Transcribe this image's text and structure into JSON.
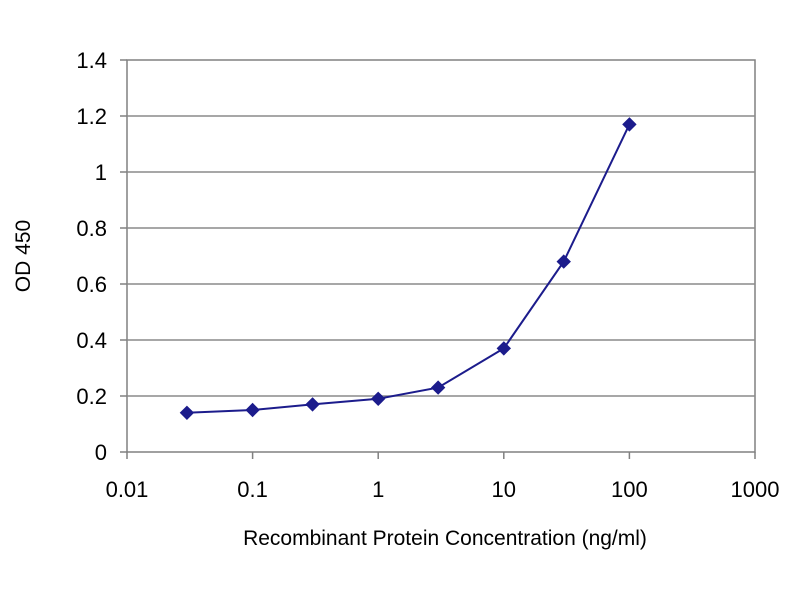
{
  "chart_data": {
    "type": "line",
    "title": "",
    "xlabel": "Recombinant Protein Concentration (ng/ml)",
    "ylabel": "OD 450",
    "x_scale": "log",
    "xlim": [
      0.01,
      1000
    ],
    "ylim": [
      0,
      1.4
    ],
    "x_ticks": [
      "0.01",
      "0.1",
      "1",
      "10",
      "100",
      "1000"
    ],
    "y_ticks": [
      "0",
      "0.2",
      "0.4",
      "0.6",
      "0.8",
      "1",
      "1.2",
      "1.4"
    ],
    "grid": "horizontal",
    "legend": "none",
    "series": [
      {
        "color": "#1c1c8c",
        "marker": "diamond",
        "x": [
          0.03,
          0.1,
          0.3,
          1,
          3,
          10,
          30,
          100
        ],
        "y": [
          0.14,
          0.15,
          0.17,
          0.19,
          0.23,
          0.37,
          0.68,
          1.17
        ]
      }
    ]
  }
}
